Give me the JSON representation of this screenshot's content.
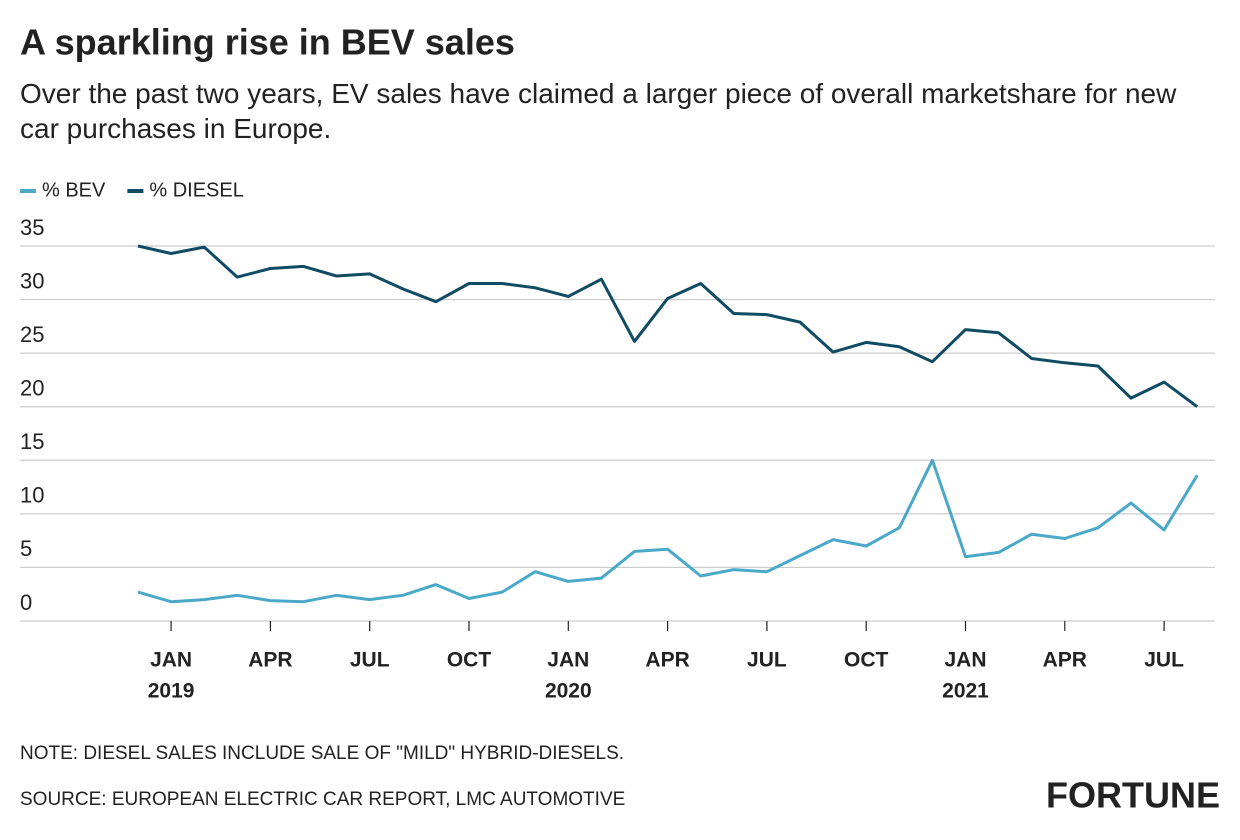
{
  "chart_data": {
    "type": "line",
    "title": "A sparkling rise in BEV sales",
    "subtitle": "Over the past two years, EV sales have claimed a larger piece of overall marketshare for new car purchases in Europe.",
    "x": [
      "2018-12",
      "2019-01",
      "2019-02",
      "2019-03",
      "2019-04",
      "2019-05",
      "2019-06",
      "2019-07",
      "2019-08",
      "2019-09",
      "2019-10",
      "2019-11",
      "2019-12",
      "2020-01",
      "2020-02",
      "2020-03",
      "2020-04",
      "2020-05",
      "2020-06",
      "2020-07",
      "2020-08",
      "2020-09",
      "2020-10",
      "2020-11",
      "2020-12",
      "2021-01",
      "2021-02",
      "2021-03",
      "2021-04",
      "2021-05",
      "2021-06",
      "2021-07",
      "2021-08"
    ],
    "series": [
      {
        "name": "% BEV",
        "color": "#4aa8c8",
        "values": [
          2.7,
          1.8,
          2.0,
          2.4,
          1.9,
          1.8,
          2.4,
          2.0,
          2.4,
          3.4,
          2.1,
          2.7,
          4.6,
          3.7,
          4.0,
          6.5,
          6.7,
          4.2,
          4.8,
          4.6,
          6.1,
          7.6,
          7.0,
          8.7,
          15.0,
          6.0,
          6.4,
          8.1,
          7.7,
          8.7,
          11.0,
          8.5,
          13.6
        ]
      },
      {
        "name": "% DIESEL",
        "color": "#0f4c63",
        "values": [
          35.0,
          34.3,
          34.9,
          32.1,
          32.9,
          33.1,
          32.2,
          32.4,
          31.0,
          29.8,
          31.5,
          31.5,
          31.1,
          30.3,
          31.9,
          26.1,
          30.1,
          31.5,
          28.7,
          28.6,
          27.9,
          25.1,
          26.0,
          25.6,
          24.2,
          27.2,
          26.9,
          24.5,
          24.1,
          23.8,
          20.8,
          22.3,
          20.0
        ]
      }
    ],
    "ylim": [
      0,
      35
    ],
    "yticks": [
      0,
      5,
      10,
      15,
      20,
      25,
      30,
      35
    ],
    "grid": true,
    "xticks": [
      {
        "value": "2019-01",
        "label": "JAN"
      },
      {
        "value": "2019-04",
        "label": "APR"
      },
      {
        "value": "2019-07",
        "label": "JUL"
      },
      {
        "value": "2019-10",
        "label": "OCT"
      },
      {
        "value": "2020-01",
        "label": "JAN"
      },
      {
        "value": "2020-04",
        "label": "APR"
      },
      {
        "value": "2020-07",
        "label": "JUL"
      },
      {
        "value": "2020-10",
        "label": "OCT"
      },
      {
        "value": "2021-01",
        "label": "JAN"
      },
      {
        "value": "2021-04",
        "label": "APR"
      },
      {
        "value": "2021-07",
        "label": "JUL"
      }
    ],
    "xtick_years": [
      {
        "value": "2019-01",
        "label": "2019"
      },
      {
        "value": "2020-01",
        "label": "2020"
      },
      {
        "value": "2021-01",
        "label": "2021"
      }
    ],
    "legend": "top-left",
    "note": "NOTE: DIESEL SALES INCLUDE SALE OF \"MILD\" HYBRID-DIESELS.",
    "source": "SOURCE: EUROPEAN ELECTRIC CAR REPORT, LMC AUTOMOTIVE",
    "brand": "FORTUNE"
  }
}
